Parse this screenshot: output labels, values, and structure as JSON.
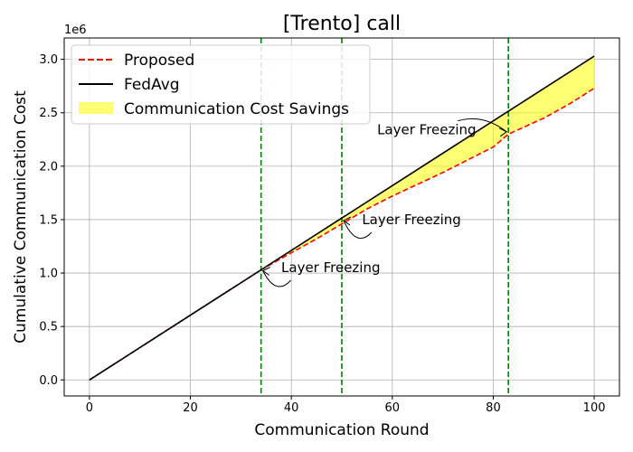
{
  "chart_data": {
    "type": "line",
    "title": "[Trento] call",
    "xlabel": "Communication Round",
    "ylabel": "Cumulative Communication Cost",
    "y_scale_label": "1e6",
    "xlim": [
      -5,
      105
    ],
    "ylim": [
      -0.15,
      3.2
    ],
    "x_ticks": [
      0,
      20,
      40,
      60,
      80,
      100
    ],
    "x_tick_labels": [
      "0",
      "20",
      "40",
      "60",
      "80",
      "100"
    ],
    "y_ticks": [
      0.0,
      0.5,
      1.0,
      1.5,
      2.0,
      2.5,
      3.0
    ],
    "y_tick_labels": [
      "0.0",
      "0.5",
      "1.0",
      "1.5",
      "2.0",
      "2.5",
      "3.0"
    ],
    "grid": true,
    "legend_position": "top-left",
    "series": [
      {
        "name": "Proposed",
        "style": "dashed",
        "color": "#ff0000",
        "x": [
          0,
          10,
          20,
          30,
          34,
          40,
          45,
          50,
          55,
          60,
          65,
          70,
          75,
          80,
          83,
          90,
          95,
          100
        ],
        "values": [
          0.0,
          0.303,
          0.606,
          0.909,
          1.03,
          1.19,
          1.32,
          1.46,
          1.6,
          1.72,
          1.83,
          1.94,
          2.06,
          2.18,
          2.3,
          2.45,
          2.58,
          2.73
        ]
      },
      {
        "name": "FedAvg",
        "style": "solid",
        "color": "#000000",
        "x": [
          0,
          100
        ],
        "values": [
          0.0,
          3.03
        ]
      }
    ],
    "fill": {
      "name": "Communication Cost Savings",
      "color": "#ffff00",
      "between": [
        "FedAvg",
        "Proposed"
      ]
    },
    "vlines": [
      {
        "x": 34,
        "color": "#008000",
        "style": "dashed"
      },
      {
        "x": 50,
        "color": "#008000",
        "style": "dashed"
      },
      {
        "x": 83,
        "color": "#008000",
        "style": "dashed"
      }
    ],
    "annotations": [
      {
        "text": "Layer Freezing",
        "target": [
          34,
          1.03
        ],
        "label_at": [
          38,
          1.05
        ]
      },
      {
        "text": "Layer Freezing",
        "target": [
          50,
          1.5
        ],
        "label_at": [
          54,
          1.5
        ]
      },
      {
        "text": "Layer Freezing",
        "target": [
          83,
          2.33
        ],
        "label_at": [
          57,
          2.34
        ]
      }
    ]
  }
}
